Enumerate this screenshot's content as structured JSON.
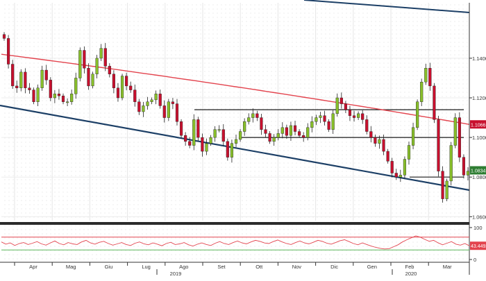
{
  "chart_data": [
    {
      "type": "candlestick",
      "x_axis": {
        "months": [
          "Apr",
          "Mag",
          "Giu",
          "Lug",
          "Ago",
          "Set",
          "Ott",
          "Nov",
          "Dic",
          "Gen",
          "Feb",
          "Mar"
        ],
        "years": [
          "2019",
          "2020"
        ]
      },
      "y_axis": {
        "range": [
          1.058,
          1.168
        ],
        "ticks": [
          {
            "value": 1.14,
            "label": "1.1400"
          },
          {
            "value": 1.12,
            "label": "1.1200"
          },
          {
            "value": 1.1,
            "label": "1.1000"
          },
          {
            "value": 1.08,
            "label": "1.0800"
          },
          {
            "value": 1.06,
            "label": "1.0600"
          }
        ]
      },
      "price_tags": [
        {
          "value": 1.1066,
          "label": "1.1066",
          "color": "#c8102e"
        },
        {
          "value": 1.0834,
          "label": "1.0834",
          "color": "#2e7d32"
        }
      ],
      "close_path": [
        1.15,
        1.137,
        1.126,
        1.125,
        1.133,
        1.125,
        1.124,
        1.118,
        1.125,
        1.134,
        1.129,
        1.12,
        1.122,
        1.121,
        1.118,
        1.118,
        1.122,
        1.13,
        1.144,
        1.135,
        1.126,
        1.132,
        1.14,
        1.145,
        1.136,
        1.132,
        1.125,
        1.12,
        1.131,
        1.126,
        1.124,
        1.118,
        1.113,
        1.116,
        1.118,
        1.119,
        1.122,
        1.116,
        1.11,
        1.118,
        1.117,
        1.108,
        1.101,
        1.098,
        1.096,
        1.109,
        1.1,
        1.093,
        1.097,
        1.1,
        1.104,
        1.104,
        1.098,
        1.09,
        1.097,
        1.099,
        1.103,
        1.108,
        1.11,
        1.112,
        1.11,
        1.104,
        1.102,
        1.098,
        1.1,
        1.102,
        1.105,
        1.101,
        1.106,
        1.103,
        1.101,
        1.1,
        1.105,
        1.108,
        1.11,
        1.111,
        1.108,
        1.104,
        1.112,
        1.12,
        1.117,
        1.114,
        1.111,
        1.11,
        1.112,
        1.109,
        1.103,
        1.1,
        1.097,
        1.099,
        1.093,
        1.088,
        1.082,
        1.08,
        1.081,
        1.089,
        1.096,
        1.105,
        1.118,
        1.128,
        1.135,
        1.126,
        1.109,
        1.083,
        1.069,
        1.078,
        1.096,
        1.11,
        1.09,
        1.081,
        1.083
      ],
      "moving_average": {
        "color": "#e3444e",
        "start": 1.142,
        "end": 1.1066
      },
      "channel": {
        "upper": {
          "start": 1.171,
          "end": 1.148,
          "color": "#1c3f66"
        },
        "lower": {
          "start": 1.105,
          "end": 1.072,
          "color": "#1c3f66"
        }
      },
      "horizontal_levels": [
        {
          "value": 1.114,
          "label": ""
        },
        {
          "value": 1.1,
          "label": ""
        },
        {
          "value": 1.08,
          "label": ""
        }
      ],
      "candle_up_color": "#88bf2a",
      "candle_down_color": "#c8102e"
    },
    {
      "type": "line",
      "name": "oscillator",
      "y_axis": {
        "ticks": [
          {
            "value": 100,
            "label": "100"
          },
          {
            "value": 0,
            "label": "0"
          }
        ]
      },
      "upper_band": 70,
      "lower_band": 30,
      "upper_band_color": "#e3444e",
      "lower_band_color": "#5cb85c",
      "line_color": "#e3444e",
      "last_value_label": "43.4492",
      "values": [
        55,
        48,
        52,
        44,
        50,
        53,
        47,
        51,
        56,
        49,
        45,
        52,
        58,
        50,
        46,
        53,
        49,
        47,
        55,
        60,
        52,
        48,
        54,
        57,
        50,
        45,
        49,
        53,
        47,
        44,
        51,
        55,
        49,
        46,
        52,
        48,
        43,
        50,
        54,
        47,
        49,
        53,
        46,
        42,
        48,
        52,
        47,
        44,
        51,
        56,
        50,
        47,
        53,
        58,
        52,
        49,
        55,
        60,
        57,
        52,
        50,
        56,
        61,
        55,
        50,
        47,
        53,
        58,
        52,
        49,
        54,
        60,
        57,
        51,
        48,
        53,
        59,
        62,
        56,
        50,
        46,
        52,
        47,
        42,
        38,
        35,
        33,
        34,
        40,
        46,
        55,
        62,
        68,
        74,
        70,
        63,
        57,
        60,
        52,
        46,
        51,
        56,
        48,
        45,
        50,
        43
      ]
    }
  ]
}
